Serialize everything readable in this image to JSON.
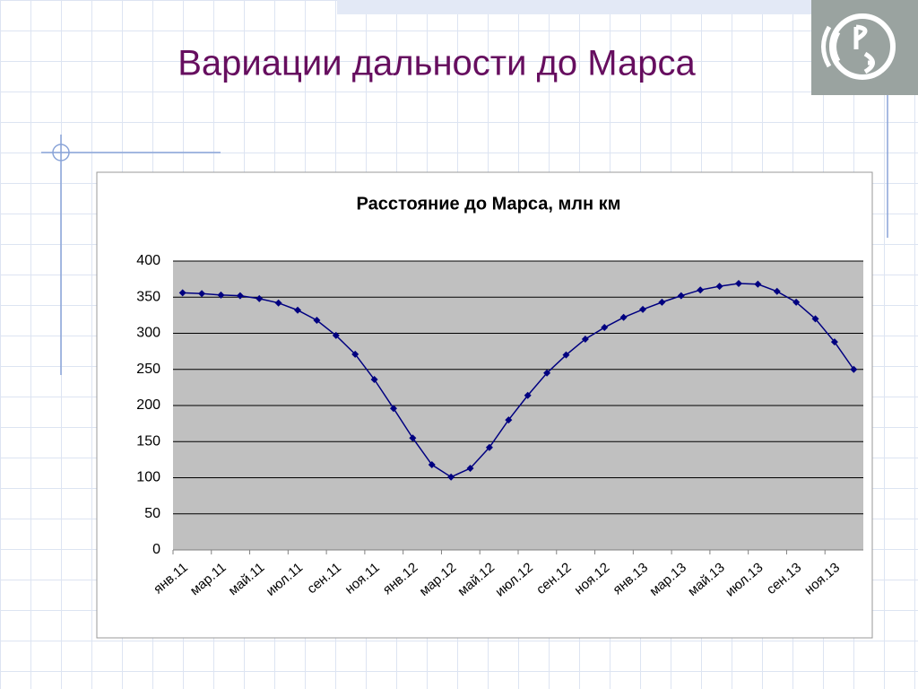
{
  "slide_title": "Вариации дальности до Марса",
  "chart_data": {
    "type": "line",
    "title": "Расстояние до Марса, млн км",
    "categories": [
      "янв.11",
      null,
      "мар.11",
      null,
      "май.11",
      null,
      "июл.11",
      null,
      "сен.11",
      null,
      "ноя.11",
      null,
      "янв.12",
      null,
      "мар.12",
      null,
      "май.12",
      null,
      "июл.12",
      null,
      "сен.12",
      null,
      "ноя.12",
      null,
      "янв.13",
      null,
      "мар.13",
      null,
      "май.13",
      null,
      "июл.13",
      null,
      "сен.13",
      null,
      "ноя.13",
      null
    ],
    "values": [
      356,
      355,
      353,
      352,
      348,
      342,
      332,
      318,
      297,
      271,
      236,
      196,
      155,
      118,
      101,
      113,
      142,
      180,
      214,
      245,
      270,
      292,
      308,
      322,
      333,
      343,
      352,
      360,
      365,
      369,
      368,
      358,
      343,
      320,
      288,
      250
    ],
    "color": "#000080",
    "ylim": [
      0,
      400
    ],
    "yticks": [
      0,
      50,
      100,
      150,
      200,
      250,
      300,
      350,
      400
    ],
    "grid": true
  }
}
